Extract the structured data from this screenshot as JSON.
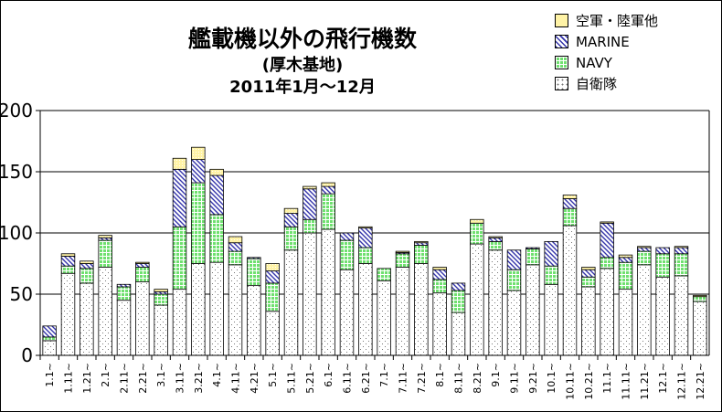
{
  "title": "艦載機以外の飛行機数",
  "subtitle": "(厚木基地)",
  "period": "2011年1月～12月",
  "chart_data": {
    "type": "bar",
    "stacked": true,
    "categories": [
      "1.1~",
      "1.11~",
      "1.21~",
      "2.1~",
      "2.11~",
      "2.21~",
      "3.1~",
      "3.11~",
      "3.21~",
      "4.1~",
      "4.11~",
      "4.21~",
      "5.1~",
      "5.11~",
      "5.21~",
      "6.1~",
      "6.11~",
      "6.21~",
      "7.1~",
      "7.11~",
      "7.21~",
      "8.1~",
      "8.11~",
      "8.21~",
      "9.1~",
      "9.11~",
      "9.21~",
      "10.1~",
      "10.11~",
      "10.21~",
      "11.1~",
      "11.11~",
      "11.21~",
      "12.1~",
      "12.11~",
      "12.21~"
    ],
    "series": [
      {
        "name": "自衛隊",
        "color": "#ffffff",
        "values": [
          12,
          67,
          59,
          72,
          45,
          60,
          41,
          54,
          75,
          76,
          74,
          57,
          36,
          86,
          100,
          103,
          70,
          75,
          61,
          72,
          75,
          51,
          35,
          91,
          86,
          53,
          74,
          58,
          106,
          56,
          71,
          54,
          74,
          64,
          65,
          44
        ]
      },
      {
        "name": "NAVY",
        "color": "#66dd66",
        "values": [
          3,
          6,
          12,
          22,
          11,
          12,
          9,
          51,
          66,
          39,
          11,
          22,
          23,
          19,
          11,
          29,
          24,
          13,
          10,
          11,
          15,
          11,
          18,
          17,
          7,
          17,
          13,
          15,
          14,
          8,
          9,
          22,
          11,
          19,
          18,
          4
        ]
      },
      {
        "name": "MARINE",
        "color": "#3333aa",
        "values": [
          9,
          8,
          4,
          2,
          2,
          3,
          2,
          47,
          19,
          32,
          7,
          1,
          10,
          11,
          25,
          6,
          6,
          16,
          0,
          1,
          2,
          8,
          6,
          0,
          3,
          16,
          1,
          20,
          8,
          6,
          28,
          4,
          3,
          5,
          5,
          0
        ]
      },
      {
        "name": "空軍・陸軍他",
        "color": "#ffee99",
        "values": [
          0,
          2,
          2,
          2,
          0,
          1,
          2,
          9,
          10,
          5,
          5,
          0,
          6,
          4,
          2,
          3,
          0,
          1,
          0,
          1,
          1,
          2,
          0,
          3,
          1,
          0,
          0,
          0,
          3,
          2,
          1,
          2,
          1,
          0,
          1,
          1
        ]
      }
    ],
    "ylim": [
      0,
      200
    ],
    "yticks": [
      "0",
      "50",
      "100",
      "150",
      "200"
    ],
    "grid": true,
    "legend_position": "top-right"
  }
}
